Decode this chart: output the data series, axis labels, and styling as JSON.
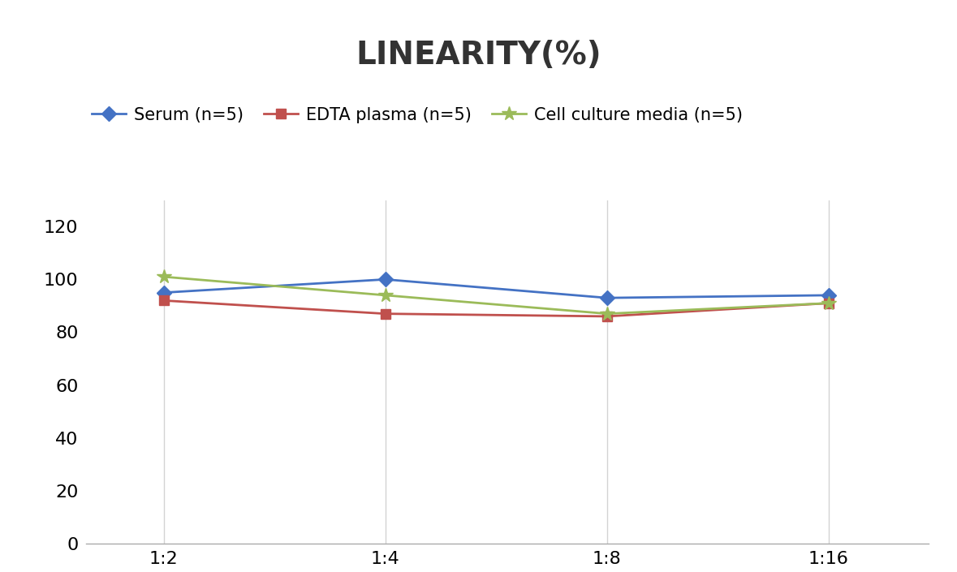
{
  "title": "LINEARITY(%)",
  "x_labels": [
    "1:2",
    "1:4",
    "1:8",
    "1:16"
  ],
  "x_positions": [
    0,
    1,
    2,
    3
  ],
  "series": [
    {
      "label": "Serum (n=5)",
      "values": [
        95,
        100,
        93,
        94
      ],
      "color": "#4472C4",
      "marker": "D",
      "linewidth": 2.0
    },
    {
      "label": "EDTA plasma (n=5)",
      "values": [
        92,
        87,
        86,
        91
      ],
      "color": "#C0504D",
      "marker": "s",
      "linewidth": 2.0
    },
    {
      "label": "Cell culture media (n=5)",
      "values": [
        101,
        94,
        87,
        91
      ],
      "color": "#9BBB59",
      "marker": "*",
      "linewidth": 2.0
    }
  ],
  "ylim": [
    0,
    130
  ],
  "yticks": [
    0,
    20,
    40,
    60,
    80,
    100,
    120
  ],
  "background_color": "#FFFFFF",
  "grid_color": "#D3D3D3",
  "title_fontsize": 28,
  "tick_fontsize": 16,
  "legend_fontsize": 15
}
